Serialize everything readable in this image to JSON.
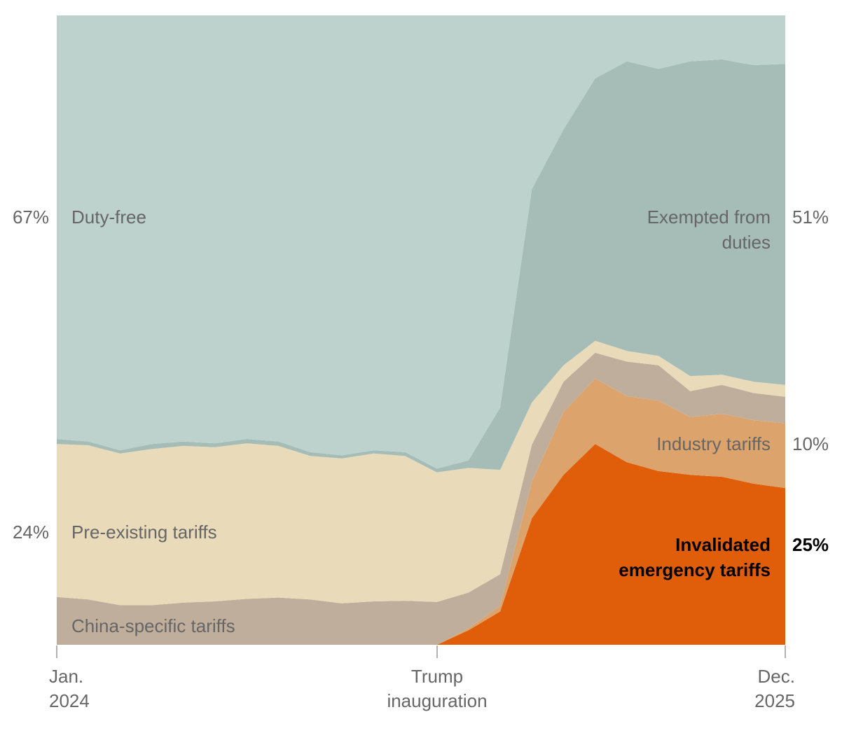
{
  "chart_data": {
    "type": "area",
    "stacked": "percent",
    "x": [
      "2024-01",
      "2024-02",
      "2024-03",
      "2024-04",
      "2024-05",
      "2024-06",
      "2024-07",
      "2024-08",
      "2024-09",
      "2024-10",
      "2024-11",
      "2024-12",
      "2025-01",
      "2025-02",
      "2025-03",
      "2025-04",
      "2025-05",
      "2025-06",
      "2025-07",
      "2025-08",
      "2025-09",
      "2025-10",
      "2025-11",
      "2025-12"
    ],
    "ylim": [
      0,
      100
    ],
    "series": [
      {
        "name": "Invalidated emergency tariffs",
        "color": "#e05d0a",
        "values": [
          0,
          0,
          0,
          0,
          0,
          0,
          0,
          0,
          0,
          0,
          0,
          0,
          0,
          2.3,
          5.3,
          20.1,
          27.0,
          31.9,
          29.0,
          27.6,
          27.0,
          26.7,
          25.6,
          24.9
        ]
      },
      {
        "name": "Industry tariffs",
        "color": "#dca46c",
        "values": [
          0,
          0,
          0,
          0,
          0,
          0,
          0,
          0,
          0,
          0,
          0,
          0,
          0,
          0.3,
          0.9,
          5.8,
          10.0,
          10.4,
          10.5,
          11.2,
          9.2,
          10.0,
          10.1,
          10.3
        ]
      },
      {
        "name": "China-specific tariffs",
        "color": "#c0ae9c",
        "values": [
          7.6,
          7.2,
          6.3,
          6.3,
          6.7,
          6.9,
          7.3,
          7.5,
          7.2,
          6.6,
          6.9,
          7.0,
          6.8,
          5.7,
          5.0,
          5.9,
          4.8,
          4.1,
          5.5,
          5.6,
          4.1,
          4.6,
          4.3,
          4.2
        ]
      },
      {
        "name": "Pre-existing tariffs",
        "color": "#e9dab9",
        "values": [
          24.3,
          24.5,
          24.1,
          24.8,
          24.9,
          24.5,
          24.7,
          24.1,
          22.8,
          23.0,
          23.5,
          23.0,
          20.6,
          19.8,
          16.6,
          6.7,
          2.6,
          1.9,
          1.7,
          1.5,
          2.4,
          1.6,
          1.8,
          1.9
        ]
      },
      {
        "name": "Exempted from duties",
        "color": "#a5bdb6",
        "values": [
          0.8,
          0.6,
          0.5,
          0.8,
          0.7,
          0.6,
          0.7,
          0.7,
          0.6,
          0.5,
          0.5,
          0.6,
          0.6,
          1.2,
          9.9,
          33.9,
          37.5,
          41.7,
          46.0,
          45.6,
          50.0,
          50.1,
          50.3,
          51.0
        ]
      },
      {
        "name": "Duty-free",
        "color": "#bdd2cc",
        "values": [
          67.3,
          67.7,
          69.1,
          68.1,
          67.7,
          68.0,
          67.3,
          67.7,
          69.4,
          69.9,
          69.1,
          69.4,
          72.0,
          70.7,
          62.3,
          27.6,
          18.1,
          10.0,
          7.3,
          8.5,
          7.3,
          7.0,
          7.9,
          7.7
        ]
      }
    ],
    "series_labels": {
      "duty_free": "Duty-free",
      "exempted_1": "Exempted from",
      "exempted_2": "duties",
      "industry": "Industry tariffs",
      "pre_existing": "Pre-existing tariffs",
      "invalidated_1": "Invalidated",
      "invalidated_2": "emergency tariffs",
      "china": "China-specific tariffs"
    },
    "value_labels": {
      "left_duty_free": "67%",
      "left_pre_existing": "24%",
      "right_exempted": "51%",
      "right_industry": "10%",
      "right_invalidated": "25%"
    },
    "x_ticks": [
      {
        "line1": "Jan.",
        "line2": "2024"
      },
      {
        "line1": "Trump",
        "line2": "inauguration"
      },
      {
        "line1": "Dec.",
        "line2": "2025"
      }
    ]
  }
}
